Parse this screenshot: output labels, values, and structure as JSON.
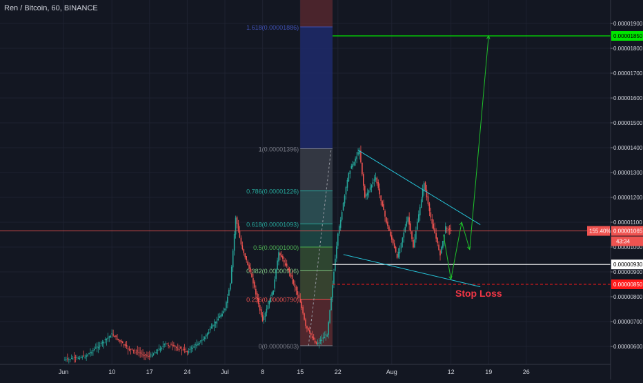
{
  "header": {
    "title": "Ren / Bitcoin, 60, BINANCE"
  },
  "colors": {
    "background": "#131722",
    "text": "#d1d4dc",
    "grid": "#1e2230",
    "up": "#26a69a",
    "down": "#ef5350",
    "target": "#00e600",
    "stop": "#ff1a1a",
    "wedge": "#26c6da",
    "support": "#ffffff"
  },
  "chart_data": {
    "type": "candlestick",
    "title": "Ren / Bitcoin, 60, BINANCE",
    "ylim": [
      5e-06,
      2e-05
    ],
    "y_ticks": [
      "0.00001900",
      "0.00001800",
      "0.00001700",
      "0.00001600",
      "0.00001500",
      "0.00001400",
      "0.00001300",
      "0.00001200",
      "0.00001100",
      "0.00001000",
      "0.00000900",
      "0.00000800",
      "0.00000700",
      "0.00000600"
    ],
    "x_ticks": [
      "Jun",
      "10",
      "17",
      "24",
      "Jul",
      "8",
      "15",
      "22",
      "Aug",
      "12",
      "19",
      "26"
    ],
    "price_series": [
      {
        "date": "Jun 1",
        "value": 5.45e-06
      },
      {
        "date": "Jun 5",
        "value": 5.6e-06
      },
      {
        "date": "Jun 8",
        "value": 6.1e-06
      },
      {
        "date": "Jun 10",
        "value": 6.5e-06
      },
      {
        "date": "Jun 13",
        "value": 5.9e-06
      },
      {
        "date": "Jun 17",
        "value": 5.6e-06
      },
      {
        "date": "Jun 20",
        "value": 6.1e-06
      },
      {
        "date": "Jun 24",
        "value": 5.8e-06
      },
      {
        "date": "Jun 27",
        "value": 6.3e-06
      },
      {
        "date": "Jul 1",
        "value": 7.5e-06
      },
      {
        "date": "Jul 2",
        "value": 8.5e-06
      },
      {
        "date": "Jul 3",
        "value": 1.12e-05
      },
      {
        "date": "Jul 4",
        "value": 1.01e-05
      },
      {
        "date": "Jul 6",
        "value": 8.8e-06
      },
      {
        "date": "Jul 8",
        "value": 7e-06
      },
      {
        "date": "Jul 10",
        "value": 8.3e-06
      },
      {
        "date": "Jul 11",
        "value": 9.8e-06
      },
      {
        "date": "Jul 13",
        "value": 9e-06
      },
      {
        "date": "Jul 15",
        "value": 7.8e-06
      },
      {
        "date": "Jul 16",
        "value": 6.8e-06
      },
      {
        "date": "Jul 18",
        "value": 6.1e-06
      },
      {
        "date": "Jul 20",
        "value": 6.5e-06
      },
      {
        "date": "Jul 21",
        "value": 8.5e-06
      },
      {
        "date": "Jul 22",
        "value": 1.05e-05
      },
      {
        "date": "Jul 24",
        "value": 1.3e-05
      },
      {
        "date": "Jul 26",
        "value": 1.39e-05
      },
      {
        "date": "Jul 27",
        "value": 1.2e-05
      },
      {
        "date": "Jul 29",
        "value": 1.28e-05
      },
      {
        "date": "Jul 31",
        "value": 1.1e-05
      },
      {
        "date": "Aug 2",
        "value": 9.6e-06
      },
      {
        "date": "Aug 4",
        "value": 1.12e-05
      },
      {
        "date": "Aug 5",
        "value": 1e-05
      },
      {
        "date": "Aug 7",
        "value": 1.26e-05
      },
      {
        "date": "Aug 8",
        "value": 1.14e-05
      },
      {
        "date": "Aug 10",
        "value": 9.7e-06
      },
      {
        "date": "Aug 11",
        "value": 1.08e-05
      },
      {
        "date": "Aug 12",
        "value": 1.065e-05
      }
    ],
    "fib_levels": [
      {
        "label": "1.618(0.00001886)",
        "value": 1.886e-05,
        "color": "#3f51b5"
      },
      {
        "label": "1(0.00001396)",
        "value": 1.396e-05,
        "color": "#787b86"
      },
      {
        "label": "0.786(0.00001226)",
        "value": 1.226e-05,
        "color": "#26a69a"
      },
      {
        "label": "0.618(0.00001093)",
        "value": 1.093e-05,
        "color": "#26a69a"
      },
      {
        "label": "0.5(0.00001000)",
        "value": 1e-05,
        "color": "#4caf50"
      },
      {
        "label": "0.382(0.00000906)",
        "value": 9.06e-06,
        "color": "#81c784"
      },
      {
        "label": "0.236(0.00000790)",
        "value": 7.9e-06,
        "color": "#ef5350"
      },
      {
        "label": "0(0.00000603)",
        "value": 6.03e-06,
        "color": "#787b86"
      }
    ],
    "target": {
      "value": 1.85e-05,
      "label": "0.00001850"
    },
    "support": {
      "value": 9.3e-06,
      "label": "0.00000930"
    },
    "stop": {
      "value": 8.5e-06,
      "label": "0.00000850",
      "text": "Stop Loss"
    },
    "current": {
      "value": 1.065e-05,
      "label": "0.00001065",
      "change": "155.40%",
      "countdown": "43:34"
    }
  }
}
